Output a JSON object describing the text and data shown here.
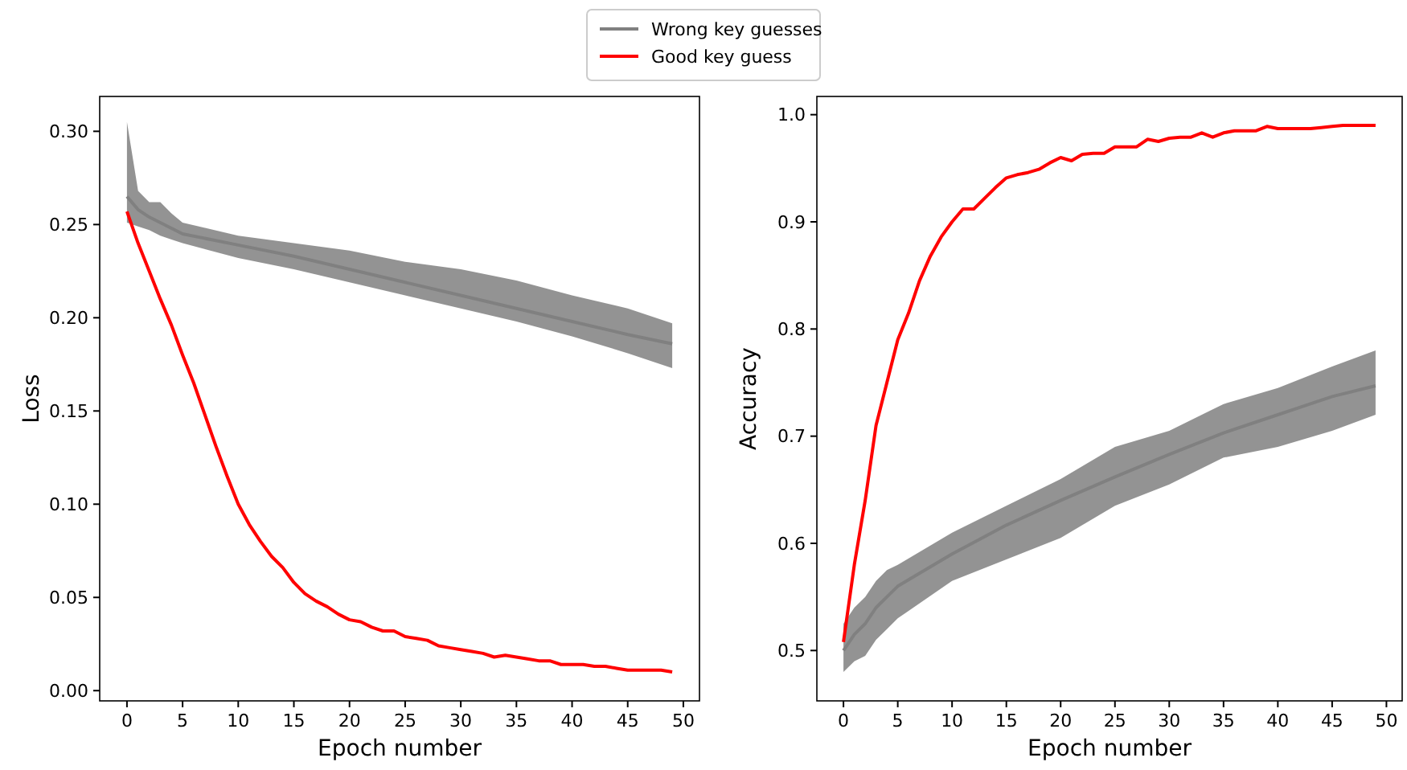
{
  "chart_data": [
    {
      "type": "line",
      "xlabel": "Epoch number",
      "ylabel": "Loss",
      "legend": "top",
      "grid": false,
      "xlim": [
        -2.45,
        51.45
      ],
      "ylim": [
        -0.0055,
        0.3187
      ],
      "xticks": [
        0,
        5,
        10,
        15,
        20,
        25,
        30,
        35,
        40,
        45,
        50
      ],
      "yticks": [
        {
          "value": 0,
          "label": "0.00"
        },
        {
          "value": 0.05,
          "label": "0.05"
        },
        {
          "value": 0.1,
          "label": "0.10"
        },
        {
          "value": 0.15,
          "label": "0.15"
        },
        {
          "value": 0.2,
          "label": "0.20"
        },
        {
          "value": 0.25,
          "label": "0.25"
        },
        {
          "value": 0.3,
          "label": "0.30"
        }
      ],
      "series": [
        {
          "name": "Wrong key guesses",
          "color": "#808080",
          "x": [
            0,
            1,
            2,
            3,
            4,
            5,
            10,
            15,
            20,
            25,
            30,
            35,
            40,
            45,
            49
          ],
          "values": [
            0.265,
            0.258,
            0.254,
            0.251,
            0.248,
            0.245,
            0.239,
            0.233,
            0.226,
            0.219,
            0.212,
            0.205,
            0.198,
            0.191,
            0.186
          ],
          "lower": [
            0.251,
            0.249,
            0.247,
            0.244,
            0.242,
            0.24,
            0.232,
            0.226,
            0.219,
            0.212,
            0.205,
            0.198,
            0.19,
            0.181,
            0.173
          ],
          "upper": [
            0.305,
            0.268,
            0.262,
            0.262,
            0.256,
            0.251,
            0.244,
            0.24,
            0.236,
            0.23,
            0.226,
            0.22,
            0.212,
            0.205,
            0.197
          ]
        },
        {
          "name": "Good key guess",
          "color": "#ff0000",
          "x": [
            0,
            1,
            2,
            3,
            4,
            5,
            6,
            7,
            8,
            9,
            10,
            11,
            12,
            13,
            14,
            15,
            16,
            17,
            18,
            19,
            20,
            21,
            22,
            23,
            24,
            25,
            26,
            27,
            28,
            29,
            30,
            31,
            32,
            33,
            34,
            35,
            36,
            37,
            38,
            39,
            40,
            41,
            42,
            43,
            44,
            45,
            46,
            47,
            48,
            49
          ],
          "values": [
            0.257,
            0.24,
            0.225,
            0.21,
            0.196,
            0.18,
            0.165,
            0.148,
            0.131,
            0.115,
            0.1,
            0.089,
            0.08,
            0.072,
            0.066,
            0.058,
            0.052,
            0.048,
            0.045,
            0.041,
            0.038,
            0.037,
            0.034,
            0.032,
            0.032,
            0.029,
            0.028,
            0.027,
            0.024,
            0.023,
            0.022,
            0.021,
            0.02,
            0.018,
            0.019,
            0.018,
            0.017,
            0.016,
            0.016,
            0.014,
            0.014,
            0.014,
            0.013,
            0.013,
            0.012,
            0.011,
            0.011,
            0.011,
            0.011,
            0.01
          ]
        }
      ]
    },
    {
      "type": "line",
      "xlabel": "Epoch number",
      "ylabel": "Accuracy",
      "grid": false,
      "xlim": [
        -2.45,
        51.45
      ],
      "ylim": [
        0.453,
        1.017
      ],
      "xticks": [
        0,
        5,
        10,
        15,
        20,
        25,
        30,
        35,
        40,
        45,
        50
      ],
      "yticks": [
        {
          "value": 0.5,
          "label": "0.5"
        },
        {
          "value": 0.6,
          "label": "0.6"
        },
        {
          "value": 0.7,
          "label": "0.7"
        },
        {
          "value": 0.8,
          "label": "0.8"
        },
        {
          "value": 0.9,
          "label": "0.9"
        },
        {
          "value": 1,
          "label": "1.0"
        }
      ],
      "series": [
        {
          "color": "#808080",
          "x": [
            0,
            1,
            2,
            3,
            4,
            5,
            10,
            15,
            20,
            25,
            30,
            35,
            40,
            45,
            49
          ],
          "values": [
            0.5,
            0.515,
            0.525,
            0.54,
            0.55,
            0.56,
            0.59,
            0.617,
            0.64,
            0.662,
            0.683,
            0.703,
            0.72,
            0.737,
            0.747
          ],
          "lower": [
            0.48,
            0.49,
            0.495,
            0.51,
            0.52,
            0.53,
            0.565,
            0.585,
            0.605,
            0.635,
            0.655,
            0.68,
            0.69,
            0.705,
            0.72
          ],
          "upper": [
            0.525,
            0.54,
            0.55,
            0.565,
            0.575,
            0.58,
            0.61,
            0.635,
            0.66,
            0.69,
            0.705,
            0.73,
            0.745,
            0.765,
            0.78
          ]
        },
        {
          "color": "#ff0000",
          "x": [
            0,
            1,
            2,
            3,
            4,
            5,
            6,
            7,
            8,
            9,
            10,
            11,
            12,
            13,
            14,
            15,
            16,
            17,
            18,
            19,
            20,
            21,
            22,
            23,
            24,
            25,
            26,
            27,
            28,
            29,
            30,
            31,
            32,
            33,
            34,
            35,
            36,
            37,
            38,
            39,
            40,
            41,
            42,
            43,
            44,
            45,
            46,
            47,
            48,
            49
          ],
          "values": [
            0.508,
            0.58,
            0.64,
            0.71,
            0.75,
            0.79,
            0.815,
            0.845,
            0.868,
            0.886,
            0.9,
            0.912,
            0.912,
            0.922,
            0.932,
            0.941,
            0.944,
            0.946,
            0.949,
            0.955,
            0.96,
            0.957,
            0.963,
            0.964,
            0.964,
            0.97,
            0.97,
            0.97,
            0.977,
            0.975,
            0.978,
            0.979,
            0.979,
            0.983,
            0.979,
            0.983,
            0.985,
            0.985,
            0.985,
            0.989,
            0.987,
            0.987,
            0.987,
            0.987,
            0.988,
            0.989,
            0.99,
            0.99,
            0.99,
            0.99
          ]
        }
      ]
    }
  ]
}
